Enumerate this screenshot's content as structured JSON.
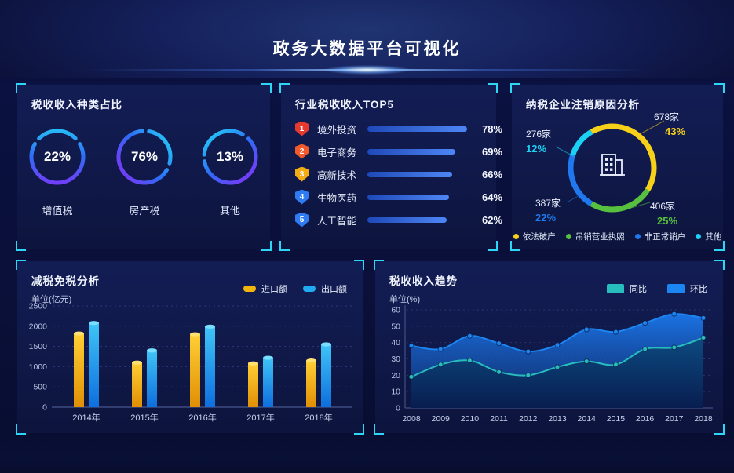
{
  "header": {
    "title": "政务大数据平台可视化"
  },
  "panels": {
    "tax_type": {
      "title": "税收收入种类占比"
    },
    "top5": {
      "title": "行业税收收入TOP5"
    },
    "cancel": {
      "title": "纳税企业注销原因分析"
    },
    "reduction": {
      "title": "减税免税分析",
      "unit": "单位(亿元)"
    },
    "trend": {
      "title": "税收收入趋势",
      "unit": "单位(%)"
    }
  },
  "colors": {
    "accent_cyan": "#2ed5f5",
    "ring_gradient": [
      "#8a2df8",
      "#2f6bf6",
      "#22d6f8"
    ],
    "top5_bar": [
      "#1f49b8",
      "#4e86f5"
    ],
    "import_yellow": "#f2b50f",
    "export_blue": "#22aaf2",
    "tongbi_teal": "#27bdbd",
    "huanbi_blue": "#1b86f2"
  },
  "chart_data": [
    {
      "id": "tax_type_rings",
      "type": "pie",
      "title": "税收收入种类占比",
      "items": [
        {
          "label": "增值税",
          "value": 22,
          "percent_text": "22%"
        },
        {
          "label": "房产税",
          "value": 76,
          "percent_text": "76%"
        },
        {
          "label": "其他",
          "value": 13,
          "percent_text": "13%"
        }
      ]
    },
    {
      "id": "industry_top5",
      "type": "bar",
      "orientation": "horizontal",
      "title": "行业税收收入TOP5",
      "items": [
        {
          "rank": "1",
          "label": "境外投资",
          "value": 78,
          "percent_text": "78%",
          "badge_color": "#e63a2e"
        },
        {
          "rank": "2",
          "label": "电子商务",
          "value": 69,
          "percent_text": "69%",
          "badge_color": "#f2592b"
        },
        {
          "rank": "3",
          "label": "高新技术",
          "value": 66,
          "percent_text": "66%",
          "badge_color": "#f3ac14"
        },
        {
          "rank": "4",
          "label": "生物医药",
          "value": 64,
          "percent_text": "64%",
          "badge_color": "#2e7bf3"
        },
        {
          "rank": "5",
          "label": "人工智能",
          "value": 62,
          "percent_text": "62%",
          "badge_color": "#2e7bf3"
        }
      ]
    },
    {
      "id": "cancel_reasons",
      "type": "pie",
      "title": "纳税企业注销原因分析",
      "slices": [
        {
          "label": "依法破产",
          "count_text": "678家",
          "percent_text": "43%",
          "value": 43,
          "color": "#f6d019"
        },
        {
          "label": "吊销营业执照",
          "count_text": "406家",
          "percent_text": "25%",
          "value": 25,
          "color": "#57c13f"
        },
        {
          "label": "非正常销户",
          "count_text": "387家",
          "percent_text": "22%",
          "value": 22,
          "color": "#1f78ee"
        },
        {
          "label": "其他",
          "count_text": "276家",
          "percent_text": "12%",
          "value": 12,
          "color": "#1bd1f4"
        }
      ]
    },
    {
      "id": "tax_reduction",
      "type": "bar",
      "title": "减税免税分析",
      "ylabel": "单位(亿元)",
      "categories": [
        "2014年",
        "2015年",
        "2016年",
        "2017年",
        "2018年"
      ],
      "series": [
        {
          "name": "进口额",
          "color": "#f2b50f",
          "values": [
            1820,
            1100,
            1800,
            1080,
            1150
          ]
        },
        {
          "name": "出口额",
          "color": "#22aaf2",
          "values": [
            2080,
            1400,
            1990,
            1220,
            1550
          ]
        }
      ],
      "ylim": [
        0,
        2500
      ],
      "yticks": [
        0,
        500,
        1000,
        1500,
        2000,
        2500
      ],
      "grid": "dotted",
      "legend_position": "top-right"
    },
    {
      "id": "tax_trend",
      "type": "area",
      "title": "税收收入趋势",
      "ylabel": "单位(%)",
      "x": [
        "2008",
        "2009",
        "2010",
        "2011",
        "2012",
        "2013",
        "2014",
        "2015",
        "2016",
        "2017",
        "2018"
      ],
      "series": [
        {
          "name": "环比",
          "color": "#1b86f2",
          "values": [
            38,
            36,
            44,
            39.5,
            34.5,
            38.5,
            48,
            46.5,
            52,
            57.5,
            55
          ]
        },
        {
          "name": "同比",
          "color": "#27bdbd",
          "values": [
            19,
            26.5,
            29,
            22,
            20,
            25,
            28.5,
            26.5,
            36,
            37,
            43
          ]
        }
      ],
      "legend": [
        "同比",
        "环比"
      ],
      "ylim": [
        0,
        60
      ],
      "yticks": [
        0,
        10,
        20,
        30,
        40,
        50,
        60
      ],
      "grid": "dotted",
      "legend_position": "top-right"
    }
  ]
}
